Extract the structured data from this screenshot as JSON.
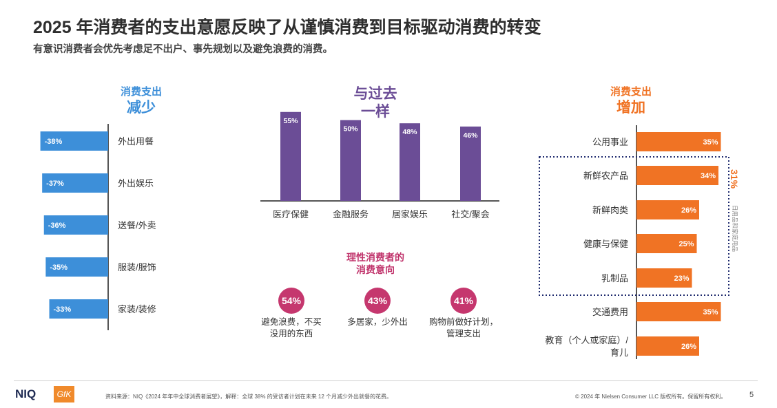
{
  "header": {
    "title": "2025 年消费者的支出意愿反映了从谨慎消费到目标驱动消费的转变",
    "subtitle": "有意识消费者会优先考虑足不出户、事先规划以及避免浪费的消费。"
  },
  "decrease_panel": {
    "label_small": "消费支出",
    "label_big": "减少"
  },
  "same_panel": {
    "label_line1": "与过去",
    "label_line2": "一样"
  },
  "increase_panel": {
    "label_small": "消费支出",
    "label_big": "增加",
    "group_total": "31%",
    "group_label": "日用品和家庭用品"
  },
  "rational": {
    "title_line1": "理性消费者的",
    "title_line2": "消费意向",
    "items": [
      {
        "value": "54%",
        "line1": "避免浪费，不买",
        "line2": "没用的东西"
      },
      {
        "value": "43%",
        "line1": "多居家，少外出",
        "line2": ""
      },
      {
        "value": "41%",
        "line1": "购物前做好计划，",
        "line2": "管理支出"
      }
    ]
  },
  "colors": {
    "blue": "#3d8fd9",
    "purple": "#6b4d96",
    "orange": "#f07324",
    "magenta": "#c5376e",
    "gfk_orange": "#f08a2b",
    "niq_navy": "#1e2a52"
  },
  "footer": {
    "niq_logo": "NIQ",
    "gfk_logo": "GfK",
    "source": "资料来源：NIQ《2024 年年中全球消费者展望》，解释：全球 38% 的受访者计划在未来 12 个月减少外出就餐的花费。",
    "copyright": "© 2024 年 Nielsen Consumer LLC 版权所有。保留所有权利。",
    "page_number": "5"
  },
  "chart_data": [
    {
      "type": "bar",
      "orientation": "horizontal",
      "title": "消费支出减少",
      "categories": [
        "外出用餐",
        "外出娱乐",
        "送餐/外卖",
        "服装/服饰",
        "家装/装修"
      ],
      "values": [
        -38,
        -37,
        -36,
        -35,
        -33
      ],
      "labels": [
        "-38%",
        "-37%",
        "-36%",
        "-35%",
        "-33%"
      ],
      "unit": "%"
    },
    {
      "type": "bar",
      "orientation": "vertical",
      "title": "与过去一样",
      "categories": [
        "医疗保健",
        "金融服务",
        "居家娱乐",
        "社交/聚会"
      ],
      "values": [
        55,
        50,
        48,
        46
      ],
      "labels": [
        "55%",
        "50%",
        "48%",
        "46%"
      ],
      "unit": "%"
    },
    {
      "type": "bar",
      "orientation": "horizontal",
      "title": "消费支出增加",
      "categories": [
        "公用事业",
        "新鲜农产品",
        "新鲜肉类",
        "健康与保健",
        "乳制品",
        "交通费用",
        "教育（个人或家庭）/育儿"
      ],
      "category_lines": [
        [
          "公用事业"
        ],
        [
          "新鲜农产品"
        ],
        [
          "新鲜肉类"
        ],
        [
          "健康与保健"
        ],
        [
          "乳制品"
        ],
        [
          "交通费用"
        ],
        [
          "教育（个人或家庭）/",
          "育儿"
        ]
      ],
      "values": [
        35,
        34,
        26,
        25,
        23,
        35,
        26
      ],
      "labels": [
        "35%",
        "34%",
        "26%",
        "25%",
        "23%",
        "35%",
        "26%"
      ],
      "grouped": [
        "新鲜农产品",
        "新鲜肉类",
        "健康与保健",
        "乳制品"
      ],
      "unit": "%"
    }
  ]
}
